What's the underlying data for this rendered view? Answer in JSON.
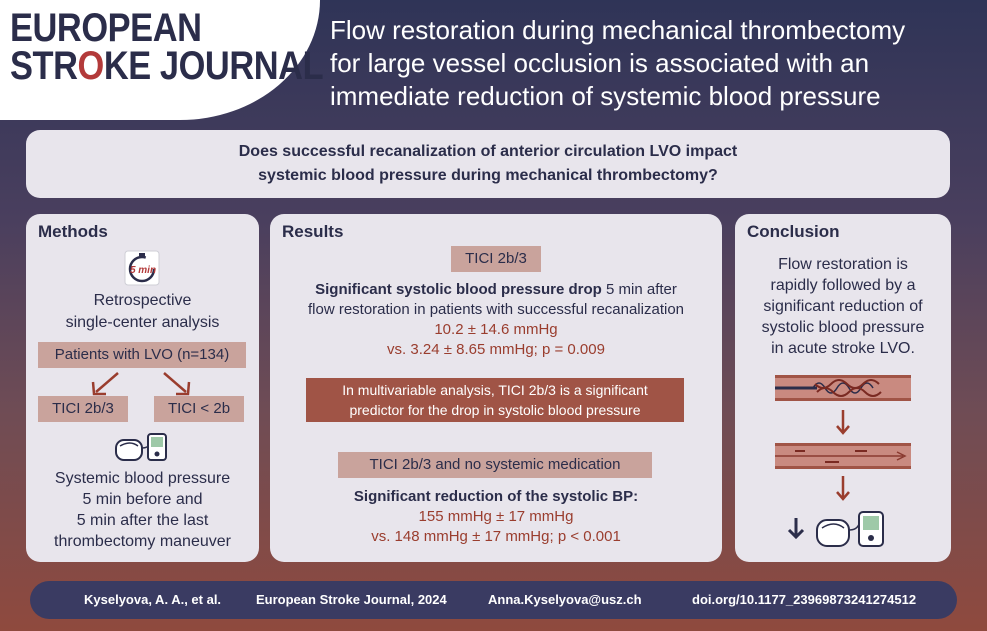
{
  "logo": {
    "line1": "EUROPEAN",
    "line2_a": "STR",
    "line2_o": "O",
    "line2_b": "KE JOURNAL"
  },
  "header": {
    "title_line1": "Flow restoration during mechanical thrombectomy",
    "title_line2": "for large vessel occlusion is associated with an",
    "title_line3": "immediate reduction of systemic blood pressure"
  },
  "question": {
    "line1": "Does successful recanalization of anterior circulation LVO impact",
    "line2": "systemic blood pressure during mechanical thrombectomy?"
  },
  "methods": {
    "title": "Methods",
    "timer_label": "5 min",
    "analysis_line1": "Retrospective",
    "analysis_line2": "single-center analysis",
    "patients": "Patients with LVO (n=134)",
    "group_a": "TICI 2b/3",
    "group_b": "TICI < 2b",
    "bp_line1": "Systemic blood pressure",
    "bp_line2": "5 min before and",
    "bp_line3": "5 min after the last",
    "bp_line4": "thrombectomy maneuver"
  },
  "results": {
    "title": "Results",
    "tag1": "TICI 2b/3",
    "finding1_bold": "Significant systolic blood pressure drop",
    "finding1_rest": " 5 min after",
    "finding1_line2": "flow restoration in patients with successful recanalization",
    "value1_line1": "10.2 ± 14.6 mmHg",
    "value1_line2": "vs. 3.24 ± 8.65 mmHg; p = 0.009",
    "multivariable_line1": "In multivariable analysis, TICI 2b/3 is a significant",
    "multivariable_line2": "predictor for the drop in systolic blood pressure",
    "tag2": "TICI 2b/3 and no systemic medication",
    "finding2": "Significant reduction of the systolic BP:",
    "value2_line1": "155 mmHg ± 17 mmHg",
    "value2_line2": "vs. 148 mmHg ± 17 mmHg; p < 0.001"
  },
  "conclusion": {
    "title": "Conclusion",
    "line1": "Flow restoration is",
    "line2": "rapidly followed by a",
    "line3": "significant reduction of",
    "line4": "systolic blood pressure",
    "line5": "in acute stroke LVO."
  },
  "footer": {
    "authors": "Kyselyova, A. A., et al.",
    "journal": "European Stroke Journal, 2024",
    "email": "Anna.Kyselyova@usz.ch",
    "doi": "doi.org/10.1177_23969873241274512"
  },
  "colors": {
    "navy": "#2b2d4a",
    "accent_red": "#9a3d2e",
    "tag_light": "#c9a39c",
    "tag_dark": "#a05446",
    "panel_bg": "#e8e5ec"
  },
  "icons": [
    "timer-icon",
    "arrow-down-left-icon",
    "arrow-down-right-icon",
    "blood-pressure-monitor-icon",
    "occluded-vessel-icon",
    "open-vessel-icon",
    "arrow-down-icon"
  ]
}
